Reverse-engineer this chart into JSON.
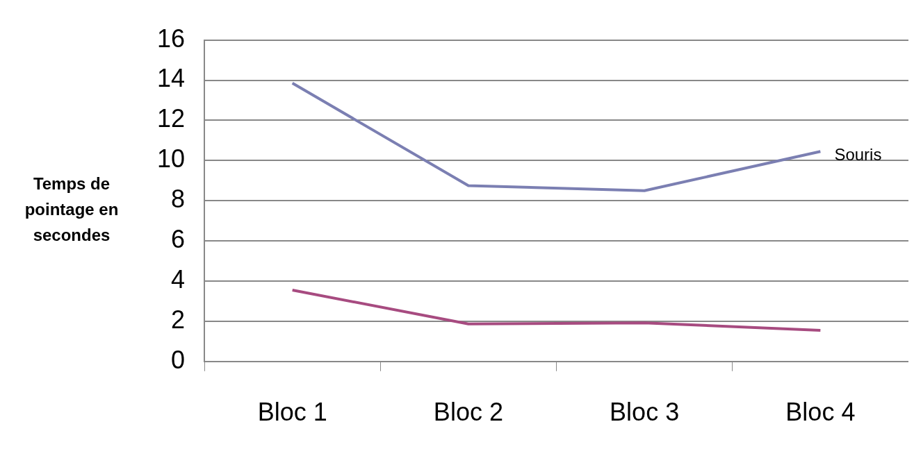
{
  "chart_data": {
    "type": "line",
    "ylabel": "Temps de pointage en secondes",
    "categories": [
      "Bloc 1",
      "Bloc 2",
      "Bloc 3",
      "Bloc 4"
    ],
    "series": [
      {
        "name": "Souris",
        "color": "#7b7fb2",
        "values": [
          13.85,
          8.75,
          8.5,
          10.45
        ]
      },
      {
        "color": "#a74b80",
        "values": [
          3.55,
          1.87,
          1.92,
          1.55
        ]
      }
    ],
    "ylim": [
      0,
      16
    ],
    "yticks": [
      0,
      2,
      4,
      6,
      8,
      10,
      12,
      14,
      16
    ],
    "grid": "y",
    "legend": false,
    "marker": "none"
  }
}
